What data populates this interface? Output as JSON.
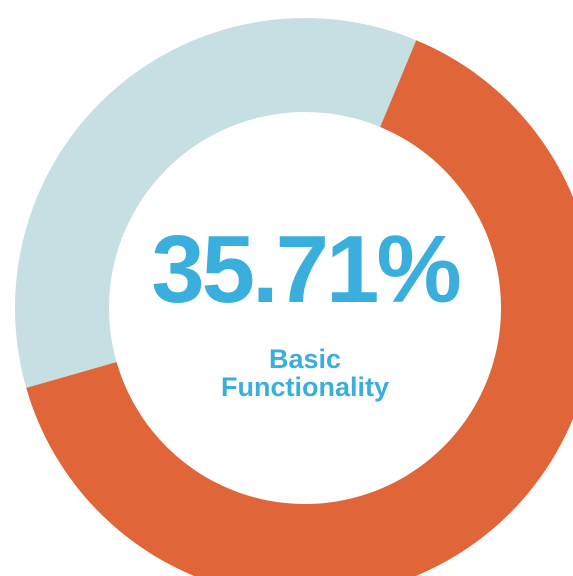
{
  "chart_data": {
    "type": "pie",
    "categories": [
      "Basic Functionality",
      null
    ],
    "values": [
      35.71,
      64.29
    ],
    "value_labels": [
      "35.71%",
      null
    ],
    "colors": [
      "#c6dfe2",
      "#e0663a"
    ]
  }
}
